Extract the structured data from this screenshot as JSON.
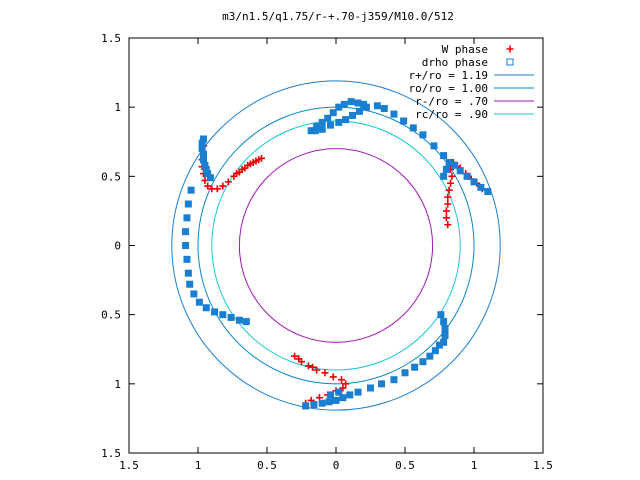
{
  "chart_data": {
    "type": "scatter",
    "title": "m3/n1.5/q1.75/r-+.70-j359/M10.0/512",
    "xlabel": "",
    "ylabel": "",
    "xlim": [
      -1.5,
      1.5
    ],
    "ylim": [
      -1.5,
      1.5
    ],
    "x_ticks": [
      {
        "value": -1.5,
        "label": "1.5"
      },
      {
        "value": -1.0,
        "label": "1"
      },
      {
        "value": -0.5,
        "label": "0.5"
      },
      {
        "value": 0,
        "label": "0"
      },
      {
        "value": 0.5,
        "label": "0.5"
      },
      {
        "value": 1.0,
        "label": "1"
      },
      {
        "value": 1.5,
        "label": "1.5"
      }
    ],
    "y_ticks": [
      {
        "value": 1.5,
        "label": "1.5"
      },
      {
        "value": 1.0,
        "label": "1"
      },
      {
        "value": 0.5,
        "label": "0.5"
      },
      {
        "value": 0,
        "label": "0"
      },
      {
        "value": -0.5,
        "label": "0.5"
      },
      {
        "value": -1.0,
        "label": "1"
      },
      {
        "value": -1.5,
        "label": "1.5"
      }
    ],
    "grid": false,
    "legend_position": "top-right",
    "circles": [
      {
        "name": "r+/ro = 1.19",
        "r": 1.19,
        "color": "#1a7fd0"
      },
      {
        "name": "ro/ro = 1.00",
        "r": 1.0,
        "color": "#0a86c8"
      },
      {
        "name": "r-/ro =  .70",
        "r": 0.7,
        "color": "#a218b8"
      },
      {
        "name": "rc/ro =  .90",
        "r": 0.9,
        "color": "#18c8d8"
      }
    ],
    "series": [
      {
        "name": "W phase",
        "marker": "plus",
        "color": "#ee0000",
        "points": [
          [
            -0.96,
            0.72
          ],
          [
            -0.96,
            0.67
          ],
          [
            -0.97,
            0.62
          ],
          [
            -0.97,
            0.57
          ],
          [
            -0.96,
            0.52
          ],
          [
            -0.95,
            0.47
          ],
          [
            -0.93,
            0.43
          ],
          [
            -0.9,
            0.41
          ],
          [
            -0.86,
            0.41
          ],
          [
            -0.82,
            0.43
          ],
          [
            -0.78,
            0.46
          ],
          [
            -0.74,
            0.5
          ],
          [
            -0.7,
            0.53
          ],
          [
            -0.66,
            0.56
          ],
          [
            -0.62,
            0.59
          ],
          [
            -0.58,
            0.61
          ],
          [
            -0.54,
            0.63
          ],
          [
            -0.56,
            0.62
          ],
          [
            -0.6,
            0.6
          ],
          [
            -0.64,
            0.58
          ],
          [
            -0.68,
            0.55
          ],
          [
            -0.72,
            0.52
          ],
          [
            0.82,
            0.58
          ],
          [
            0.83,
            0.55
          ],
          [
            0.84,
            0.5
          ],
          [
            0.83,
            0.45
          ],
          [
            0.82,
            0.4
          ],
          [
            0.81,
            0.35
          ],
          [
            0.81,
            0.3
          ],
          [
            0.8,
            0.25
          ],
          [
            0.8,
            0.2
          ],
          [
            0.81,
            0.15
          ],
          [
            0.85,
            0.6
          ],
          [
            0.9,
            0.56
          ],
          [
            0.94,
            0.52
          ],
          [
            0.98,
            0.48
          ],
          [
            1.02,
            0.45
          ],
          [
            1.06,
            0.41
          ],
          [
            0.88,
            0.57
          ],
          [
            0.96,
            0.5
          ],
          [
            -0.3,
            -0.8
          ],
          [
            -0.25,
            -0.84
          ],
          [
            -0.2,
            -0.87
          ],
          [
            -0.14,
            -0.9
          ],
          [
            -0.08,
            -0.92
          ],
          [
            -0.02,
            -0.95
          ],
          [
            0.04,
            -0.97
          ],
          [
            0.07,
            -1.0
          ],
          [
            0.05,
            -1.03
          ],
          [
            0.0,
            -1.05
          ],
          [
            -0.06,
            -1.08
          ],
          [
            -0.12,
            -1.1
          ],
          [
            -0.18,
            -1.12
          ],
          [
            -0.22,
            -1.14
          ],
          [
            -0.27,
            -0.82
          ],
          [
            -0.17,
            -0.88
          ]
        ]
      },
      {
        "name": "drho phase",
        "marker": "square",
        "color": "#1a7fd0",
        "points": [
          [
            -0.96,
            0.77
          ],
          [
            -0.97,
            0.74
          ],
          [
            -0.97,
            0.7
          ],
          [
            -0.96,
            0.66
          ],
          [
            -0.96,
            0.62
          ],
          [
            -0.95,
            0.58
          ],
          [
            -0.94,
            0.55
          ],
          [
            -0.93,
            0.52
          ],
          [
            -0.91,
            0.49
          ],
          [
            -1.05,
            0.4
          ],
          [
            -1.07,
            0.3
          ],
          [
            -1.08,
            0.2
          ],
          [
            -1.09,
            0.1
          ],
          [
            -1.09,
            0.0
          ],
          [
            -1.08,
            -0.1
          ],
          [
            -1.07,
            -0.2
          ],
          [
            -1.06,
            -0.28
          ],
          [
            -1.03,
            -0.35
          ],
          [
            -0.99,
            -0.41
          ],
          [
            -0.94,
            -0.45
          ],
          [
            -0.88,
            -0.48
          ],
          [
            -0.82,
            -0.5
          ],
          [
            -0.76,
            -0.52
          ],
          [
            -0.7,
            -0.54
          ],
          [
            -0.65,
            -0.55
          ],
          [
            -0.18,
            0.83
          ],
          [
            -0.14,
            0.86
          ],
          [
            -0.1,
            0.89
          ],
          [
            -0.06,
            0.92
          ],
          [
            -0.02,
            0.96
          ],
          [
            0.02,
            1.0
          ],
          [
            0.06,
            1.02
          ],
          [
            0.11,
            1.04
          ],
          [
            0.16,
            1.03
          ],
          [
            0.2,
            1.02
          ],
          [
            0.22,
            1.0
          ],
          [
            0.17,
            0.97
          ],
          [
            0.12,
            0.94
          ],
          [
            0.07,
            0.91
          ],
          [
            0.02,
            0.89
          ],
          [
            -0.04,
            0.87
          ],
          [
            -0.1,
            0.84
          ],
          [
            -0.15,
            0.83
          ],
          [
            0.3,
            1.01
          ],
          [
            0.35,
            0.99
          ],
          [
            0.42,
            0.95
          ],
          [
            0.49,
            0.9
          ],
          [
            0.56,
            0.85
          ],
          [
            0.63,
            0.8
          ],
          [
            0.71,
            0.72
          ],
          [
            0.78,
            0.65
          ],
          [
            0.82,
            0.6
          ],
          [
            0.86,
            0.58
          ],
          [
            0.9,
            0.54
          ],
          [
            0.95,
            0.5
          ],
          [
            1.0,
            0.46
          ],
          [
            1.05,
            0.42
          ],
          [
            1.1,
            0.39
          ],
          [
            0.8,
            0.55
          ],
          [
            0.78,
            0.5
          ],
          [
            0.76,
            -0.5
          ],
          [
            0.78,
            -0.55
          ],
          [
            0.79,
            -0.6
          ],
          [
            0.79,
            -0.65
          ],
          [
            0.78,
            -0.7
          ],
          [
            0.75,
            -0.72
          ],
          [
            0.72,
            -0.76
          ],
          [
            0.68,
            -0.8
          ],
          [
            0.63,
            -0.84
          ],
          [
            0.57,
            -0.88
          ],
          [
            0.5,
            -0.92
          ],
          [
            0.42,
            -0.97
          ],
          [
            0.33,
            -1.0
          ],
          [
            0.25,
            -1.03
          ],
          [
            0.16,
            -1.06
          ],
          [
            0.1,
            -1.08
          ],
          [
            0.05,
            -1.1
          ],
          [
            0.0,
            -1.12
          ],
          [
            -0.05,
            -1.13
          ],
          [
            -0.1,
            -1.14
          ],
          [
            -0.16,
            -1.15
          ],
          [
            -0.22,
            -1.16
          ],
          [
            0.02,
            -1.06
          ],
          [
            -0.04,
            -1.08
          ]
        ]
      }
    ]
  }
}
